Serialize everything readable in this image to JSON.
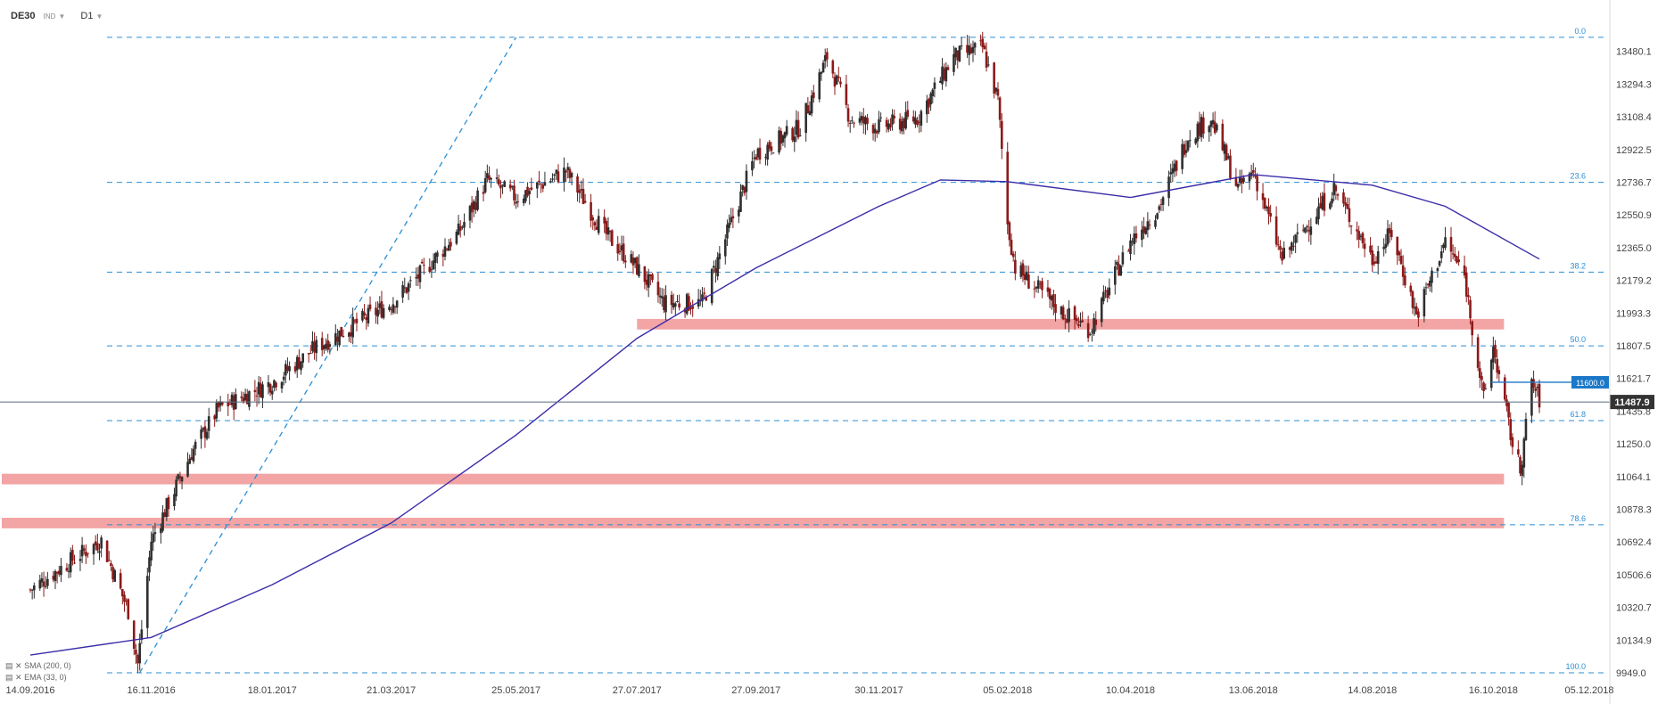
{
  "header": {
    "symbol": "DE30",
    "type": "IND",
    "interval": "D1"
  },
  "legend": [
    "SMA (200, 0)",
    "EMA (33, 0)"
  ],
  "price_tags": {
    "level": "11600.0",
    "current": "11487.9"
  },
  "colors": {
    "up": "#2f2f2f",
    "down": "#8b1a1a",
    "sma": "#3b2da8",
    "zone": "#f29a9a",
    "fib": "#2a8fd6",
    "tag": "#1b78c8",
    "current_tag": "#333333"
  },
  "chart_data": {
    "type": "candlestick",
    "title": "DE30",
    "interval": "D1",
    "ylim": [
      9949,
      13600
    ],
    "y_ticks": [
      "13480.1",
      "13294.3",
      "13108.4",
      "12922.5",
      "12736.7",
      "12550.9",
      "12365.0",
      "12179.2",
      "11993.3",
      "11807.5",
      "11621.7",
      "11435.8",
      "11250.0",
      "11064.1",
      "10878.3",
      "10692.4",
      "10506.6",
      "10320.7",
      "10134.9",
      "9949.0"
    ],
    "x_ticks": [
      "14.09.2016",
      "16.11.2016",
      "18.01.2017",
      "21.03.2017",
      "25.05.2017",
      "27.07.2017",
      "27.09.2017",
      "30.11.2017",
      "05.02.2018",
      "10.04.2018",
      "13.06.2018",
      "14.08.2018",
      "16.10.2018",
      "05.12.2018"
    ],
    "fibonacci": {
      "high": 13560,
      "low": 9949,
      "levels": [
        {
          "label": "0.0",
          "value": 13560
        },
        {
          "label": "23.6",
          "value": 12736
        },
        {
          "label": "38.2",
          "value": 12226
        },
        {
          "label": "50.0",
          "value": 11807
        },
        {
          "label": "61.8",
          "value": 11382
        },
        {
          "label": "78.6",
          "value": 10790
        },
        {
          "label": "100.0",
          "value": 9949
        }
      ]
    },
    "support_zones": [
      {
        "from": "27.07.2017",
        "to": "16.10.2018",
        "low": 11900,
        "high": 11960
      },
      {
        "from": "14.09.2016",
        "to": "16.10.2018",
        "low": 11020,
        "high": 11080
      },
      {
        "from": "14.09.2016",
        "to": "16.10.2018",
        "low": 10770,
        "high": 10830
      }
    ],
    "horizontal_level": 11600,
    "current_price": 11487.9,
    "close_path": [
      [
        "14.09.2016",
        10420
      ],
      [
        "07.10.2016",
        10600
      ],
      [
        "21.10.2016",
        10700
      ],
      [
        "04.11.2016",
        10300
      ],
      [
        "09.11.2016",
        10000
      ],
      [
        "16.11.2016",
        10700
      ],
      [
        "07.12.2016",
        11200
      ],
      [
        "21.12.2016",
        11450
      ],
      [
        "18.01.2017",
        11600
      ],
      [
        "10.02.2017",
        11800
      ],
      [
        "21.03.2017",
        12050
      ],
      [
        "04.04.2017",
        12200
      ],
      [
        "25.04.2017",
        12450
      ],
      [
        "10.05.2017",
        12750
      ],
      [
        "25.05.2017",
        12650
      ],
      [
        "20.06.2017",
        12800
      ],
      [
        "10.07.2017",
        12450
      ],
      [
        "27.07.2017",
        12250
      ],
      [
        "10.08.2017",
        12050
      ],
      [
        "30.08.2017",
        12050
      ],
      [
        "27.09.2017",
        12900
      ],
      [
        "20.10.2017",
        13050
      ],
      [
        "03.11.2017",
        13450
      ],
      [
        "15.11.2017",
        13100
      ],
      [
        "30.11.2017",
        13050
      ],
      [
        "20.12.2017",
        13100
      ],
      [
        "08.01.2018",
        13450
      ],
      [
        "23.01.2018",
        13500
      ],
      [
        "31.01.2018",
        13200
      ],
      [
        "05.02.2018",
        12500
      ],
      [
        "09.02.2018",
        12250
      ],
      [
        "05.03.2018",
        12000
      ],
      [
        "20.03.2018",
        11900
      ],
      [
        "10.04.2018",
        12400
      ],
      [
        "25.04.2018",
        12600
      ],
      [
        "10.05.2018",
        13000
      ],
      [
        "22.05.2018",
        13100
      ],
      [
        "05.06.2018",
        12700
      ],
      [
        "13.06.2018",
        12800
      ],
      [
        "28.06.2018",
        12300
      ],
      [
        "25.07.2018",
        12700
      ],
      [
        "14.08.2018",
        12300
      ],
      [
        "24.08.2018",
        12450
      ],
      [
        "06.09.2018",
        11980
      ],
      [
        "21.09.2018",
        12400
      ],
      [
        "01.10.2018",
        12200
      ],
      [
        "11.10.2018",
        11500
      ],
      [
        "16.10.2018",
        11800
      ],
      [
        "26.10.2018",
        11250
      ],
      [
        "30.10.2018",
        11100
      ],
      [
        "05.11.2018",
        11600
      ],
      [
        "09.11.2018",
        11500
      ]
    ],
    "series": [
      {
        "name": "SMA (200, 0)",
        "points": [
          [
            "14.09.2016",
            10050
          ],
          [
            "16.11.2016",
            10150
          ],
          [
            "18.01.2017",
            10450
          ],
          [
            "21.03.2017",
            10800
          ],
          [
            "25.05.2017",
            11300
          ],
          [
            "27.07.2017",
            11850
          ],
          [
            "27.09.2017",
            12250
          ],
          [
            "30.11.2017",
            12600
          ],
          [
            "01.01.2018",
            12750
          ],
          [
            "05.02.2018",
            12740
          ],
          [
            "10.04.2018",
            12650
          ],
          [
            "13.06.2018",
            12780
          ],
          [
            "14.08.2018",
            12720
          ],
          [
            "21.09.2018",
            12600
          ],
          [
            "09.11.2018",
            12300
          ]
        ]
      }
    ]
  }
}
